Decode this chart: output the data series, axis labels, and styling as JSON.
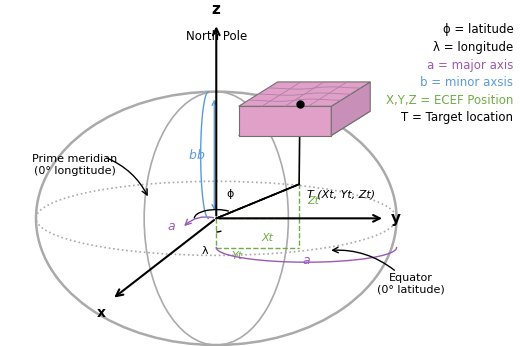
{
  "legend_lines": [
    {
      "text": "ϕ = latitude",
      "color": "#000000"
    },
    {
      "text": "λ = longitude",
      "color": "#000000"
    },
    {
      "text": "a = major axis",
      "color": "#9b59b6"
    },
    {
      "text": "b = minor axsis",
      "color": "#5b9bd5"
    },
    {
      "text": "X,Y,Z = ECEF Position",
      "color": "#70ad47"
    },
    {
      "text": "T = Target location",
      "color": "#000000"
    }
  ],
  "bg_color": "#ffffff",
  "sphere_color": "#aaaaaa",
  "b_color": "#5b9bd5",
  "a_color": "#9b59b6",
  "green": "#70ad47",
  "black": "#000000",
  "building_pink": "#e0a0c8",
  "building_gray": "#b8b8b8",
  "building_edge": "#707070"
}
